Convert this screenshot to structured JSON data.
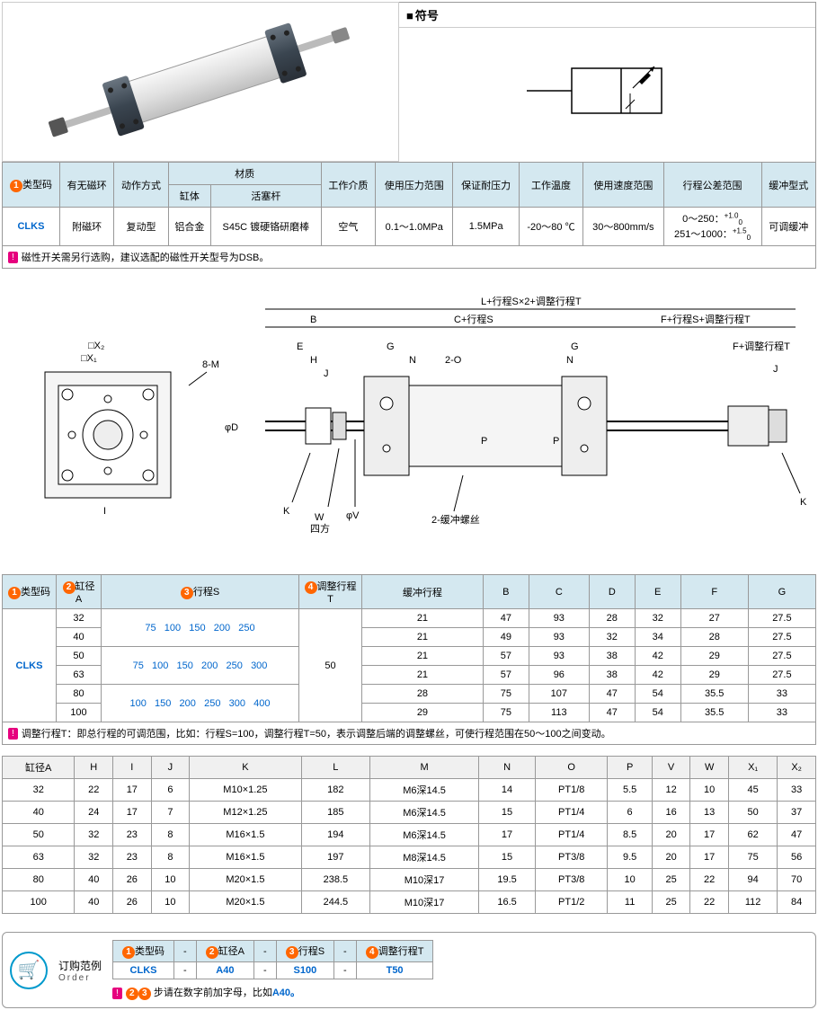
{
  "symbol_title": "符号",
  "spec_table": {
    "headers": {
      "type_code": "类型码",
      "magnet": "有无磁环",
      "action": "动作方式",
      "material": "材质",
      "body": "缸体",
      "rod": "活塞杆",
      "medium": "工作介质",
      "pressure_range": "使用压力范围",
      "max_pressure": "保证耐压力",
      "temp": "工作温度",
      "speed": "使用速度范围",
      "tolerance": "行程公差范围",
      "cushion": "缓冲型式"
    },
    "row": {
      "type_code": "CLKS",
      "magnet": "附磁环",
      "action": "复动型",
      "body": "铝合金",
      "rod": "S45C 镀硬铬研磨棒",
      "medium": "空气",
      "pressure_range": "0.1～1.0MPa",
      "max_pressure": "1.5MPa",
      "temp": "-20～80 ℃",
      "speed": "30～800mm/s",
      "tolerance_line1": "0～250：",
      "tolerance_sup1": "+1.0",
      "tolerance_sub1": "0",
      "tolerance_line2": "251～1000：",
      "tolerance_sup2": "+1.5",
      "tolerance_sub2": "0",
      "cushion": "可调缓冲"
    }
  },
  "note1": "磁性开关需另行选购，建议选配的磁性开关型号为DSB。",
  "diagram_labels": {
    "top_dim": "L+行程S×2+调整行程T",
    "c_dim": "C+行程S",
    "f_dim": "F+行程S+调整行程T",
    "ft_dim": "F+调整行程T",
    "cushion_screw": "2-缓冲螺丝",
    "square": "四方"
  },
  "dim_table1": {
    "headers": {
      "type": "类型码",
      "bore": "缸径A",
      "stroke": "行程S",
      "adj": "调整行程T",
      "cushion_stroke": "缓冲行程",
      "B": "B",
      "C": "C",
      "D": "D",
      "E": "E",
      "F": "F",
      "G": "G"
    },
    "type_code": "CLKS",
    "adj_value": "50",
    "rows": [
      {
        "bore": "32",
        "strokes": "75  100  150  200  250",
        "cushion": "21",
        "B": "47",
        "C": "93",
        "D": "28",
        "E": "32",
        "F": "27",
        "G": "27.5"
      },
      {
        "bore": "40",
        "strokes": "",
        "cushion": "21",
        "B": "49",
        "C": "93",
        "D": "32",
        "E": "34",
        "F": "28",
        "G": "27.5"
      },
      {
        "bore": "50",
        "strokes": "75  100  150  200  250  300",
        "cushion": "21",
        "B": "57",
        "C": "93",
        "D": "38",
        "E": "42",
        "F": "29",
        "G": "27.5"
      },
      {
        "bore": "63",
        "strokes": "",
        "cushion": "21",
        "B": "57",
        "C": "96",
        "D": "38",
        "E": "42",
        "F": "29",
        "G": "27.5"
      },
      {
        "bore": "80",
        "strokes": "100  150  200  250  300  400",
        "cushion": "28",
        "B": "75",
        "C": "107",
        "D": "47",
        "E": "54",
        "F": "35.5",
        "G": "33"
      },
      {
        "bore": "100",
        "strokes": "",
        "cushion": "29",
        "B": "75",
        "C": "113",
        "D": "47",
        "E": "54",
        "F": "35.5",
        "G": "33"
      }
    ]
  },
  "note2": "调整行程T：即总行程的可调范围，比如：行程S=100，调整行程T=50，表示调整后端的调整螺丝，可使行程范围在50～100之间变动。",
  "dim_table2": {
    "headers": [
      "缸径A",
      "H",
      "I",
      "J",
      "K",
      "L",
      "M",
      "N",
      "O",
      "P",
      "V",
      "W",
      "X₁",
      "X₂"
    ],
    "rows": [
      [
        "32",
        "22",
        "17",
        "6",
        "M10×1.25",
        "182",
        "M6深14.5",
        "14",
        "PT1/8",
        "5.5",
        "12",
        "10",
        "45",
        "33"
      ],
      [
        "40",
        "24",
        "17",
        "7",
        "M12×1.25",
        "185",
        "M6深14.5",
        "15",
        "PT1/4",
        "6",
        "16",
        "13",
        "50",
        "37"
      ],
      [
        "50",
        "32",
        "23",
        "8",
        "M16×1.5",
        "194",
        "M6深14.5",
        "17",
        "PT1/4",
        "8.5",
        "20",
        "17",
        "62",
        "47"
      ],
      [
        "63",
        "32",
        "23",
        "8",
        "M16×1.5",
        "197",
        "M8深14.5",
        "15",
        "PT3/8",
        "9.5",
        "20",
        "17",
        "75",
        "56"
      ],
      [
        "80",
        "40",
        "26",
        "10",
        "M20×1.5",
        "238.5",
        "M10深17",
        "19.5",
        "PT3/8",
        "10",
        "25",
        "22",
        "94",
        "70"
      ],
      [
        "100",
        "40",
        "26",
        "10",
        "M20×1.5",
        "244.5",
        "M10深17",
        "16.5",
        "PT1/2",
        "11",
        "25",
        "22",
        "112",
        "84"
      ]
    ]
  },
  "order": {
    "label": "订购范例",
    "label_en": "Order",
    "headers": [
      "类型码",
      "缸径A",
      "行程S",
      "调整行程T"
    ],
    "values": [
      "CLKS",
      "A40",
      "S100",
      "T50"
    ],
    "dash": "-",
    "note_prefix": "步请在数字前加字母，比如",
    "note_suffix": "A40。"
  }
}
